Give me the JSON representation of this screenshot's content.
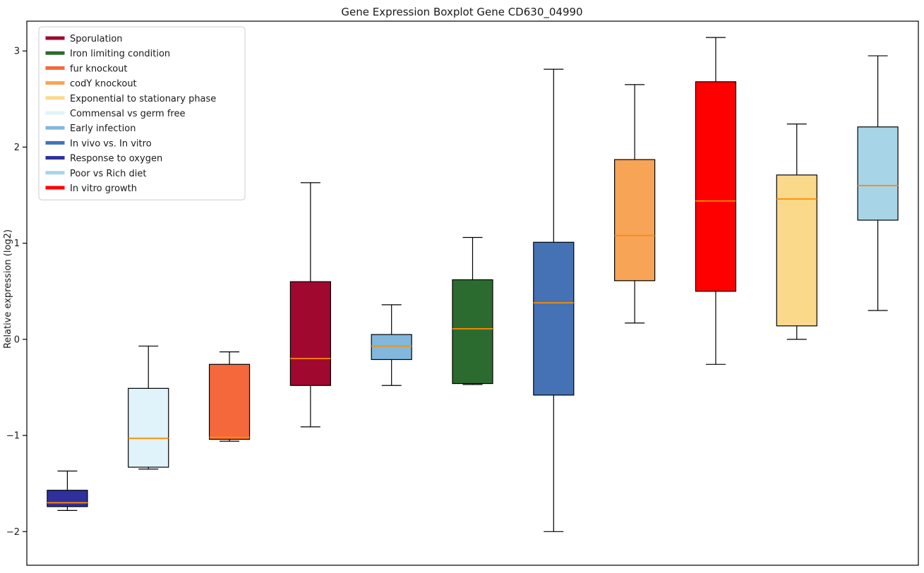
{
  "chart_data": {
    "type": "box",
    "title": "Gene Expression Boxplot Gene CD630_04990",
    "ylabel": "Relative expression (log2)",
    "xlabel": "",
    "ylim": [
      -2.35,
      3.31
    ],
    "yticks": [
      -2,
      -1,
      0,
      1,
      2,
      3
    ],
    "grid": false,
    "legend_position": "upper-left",
    "median_color": "#FF8C00",
    "frame_color": "#000000",
    "legend": [
      {
        "label": "Sporulation",
        "color": "#A0082F"
      },
      {
        "label": "Iron limiting condition",
        "color": "#2C6B2F"
      },
      {
        "label": "fur knockout",
        "color": "#F4683C"
      },
      {
        "label": "codY knockout",
        "color": "#F7A456"
      },
      {
        "label": "Exponential to stationary phase",
        "color": "#FBD98A"
      },
      {
        "label": "Commensal vs germ free",
        "color": "#E1F3FA"
      },
      {
        "label": "Early infection",
        "color": "#82B8DC"
      },
      {
        "label": "In vivo vs. In vitro",
        "color": "#4472B4"
      },
      {
        "label": "Response to oxygen",
        "color": "#2F2F9D"
      },
      {
        "label": "Poor vs Rich diet",
        "color": "#A8D4E8"
      },
      {
        "label": "In vitro growth",
        "color": "#FF0000"
      }
    ],
    "boxes": [
      {
        "name": "Response to oxygen",
        "color": "#2F2F9D",
        "whisker_low": -1.78,
        "q1": -1.74,
        "median": -1.7,
        "q3": -1.57,
        "whisker_high": -1.37
      },
      {
        "name": "Commensal vs germ free",
        "color": "#E1F3FA",
        "whisker_low": -1.35,
        "q1": -1.33,
        "median": -1.03,
        "q3": -0.51,
        "whisker_high": -0.07
      },
      {
        "name": "fur knockout",
        "color": "#F4683C",
        "whisker_low": -1.06,
        "q1": -1.04,
        "median": -1.02,
        "q3": -0.26,
        "whisker_high": -0.13
      },
      {
        "name": "Sporulation",
        "color": "#A0082F",
        "whisker_low": -0.91,
        "q1": -0.48,
        "median": -0.2,
        "q3": 0.6,
        "whisker_high": 1.63
      },
      {
        "name": "Early infection",
        "color": "#82B8DC",
        "whisker_low": -0.48,
        "q1": -0.21,
        "median": -0.07,
        "q3": 0.05,
        "whisker_high": 0.36
      },
      {
        "name": "Iron limiting condition",
        "color": "#2C6B2F",
        "whisker_low": -0.47,
        "q1": -0.46,
        "median": 0.11,
        "q3": 0.62,
        "whisker_high": 1.06
      },
      {
        "name": "In vivo vs. In vitro",
        "color": "#4472B4",
        "whisker_low": -2.0,
        "q1": -0.58,
        "median": 0.38,
        "q3": 1.01,
        "whisker_high": 2.81
      },
      {
        "name": "codY knockout",
        "color": "#F7A456",
        "whisker_low": 0.17,
        "q1": 0.61,
        "median": 1.08,
        "q3": 1.87,
        "whisker_high": 2.65
      },
      {
        "name": "In vitro growth",
        "color": "#FF0000",
        "whisker_low": -0.26,
        "q1": 0.5,
        "median": 1.44,
        "q3": 2.68,
        "whisker_high": 3.14
      },
      {
        "name": "Exponential to stationary phase",
        "color": "#FBD98A",
        "whisker_low": 0.0,
        "q1": 0.14,
        "median": 1.46,
        "q3": 1.71,
        "whisker_high": 2.24
      },
      {
        "name": "Poor vs Rich diet",
        "color": "#A8D4E8",
        "whisker_low": 0.3,
        "q1": 1.24,
        "median": 1.6,
        "q3": 2.21,
        "whisker_high": 2.95
      }
    ]
  }
}
